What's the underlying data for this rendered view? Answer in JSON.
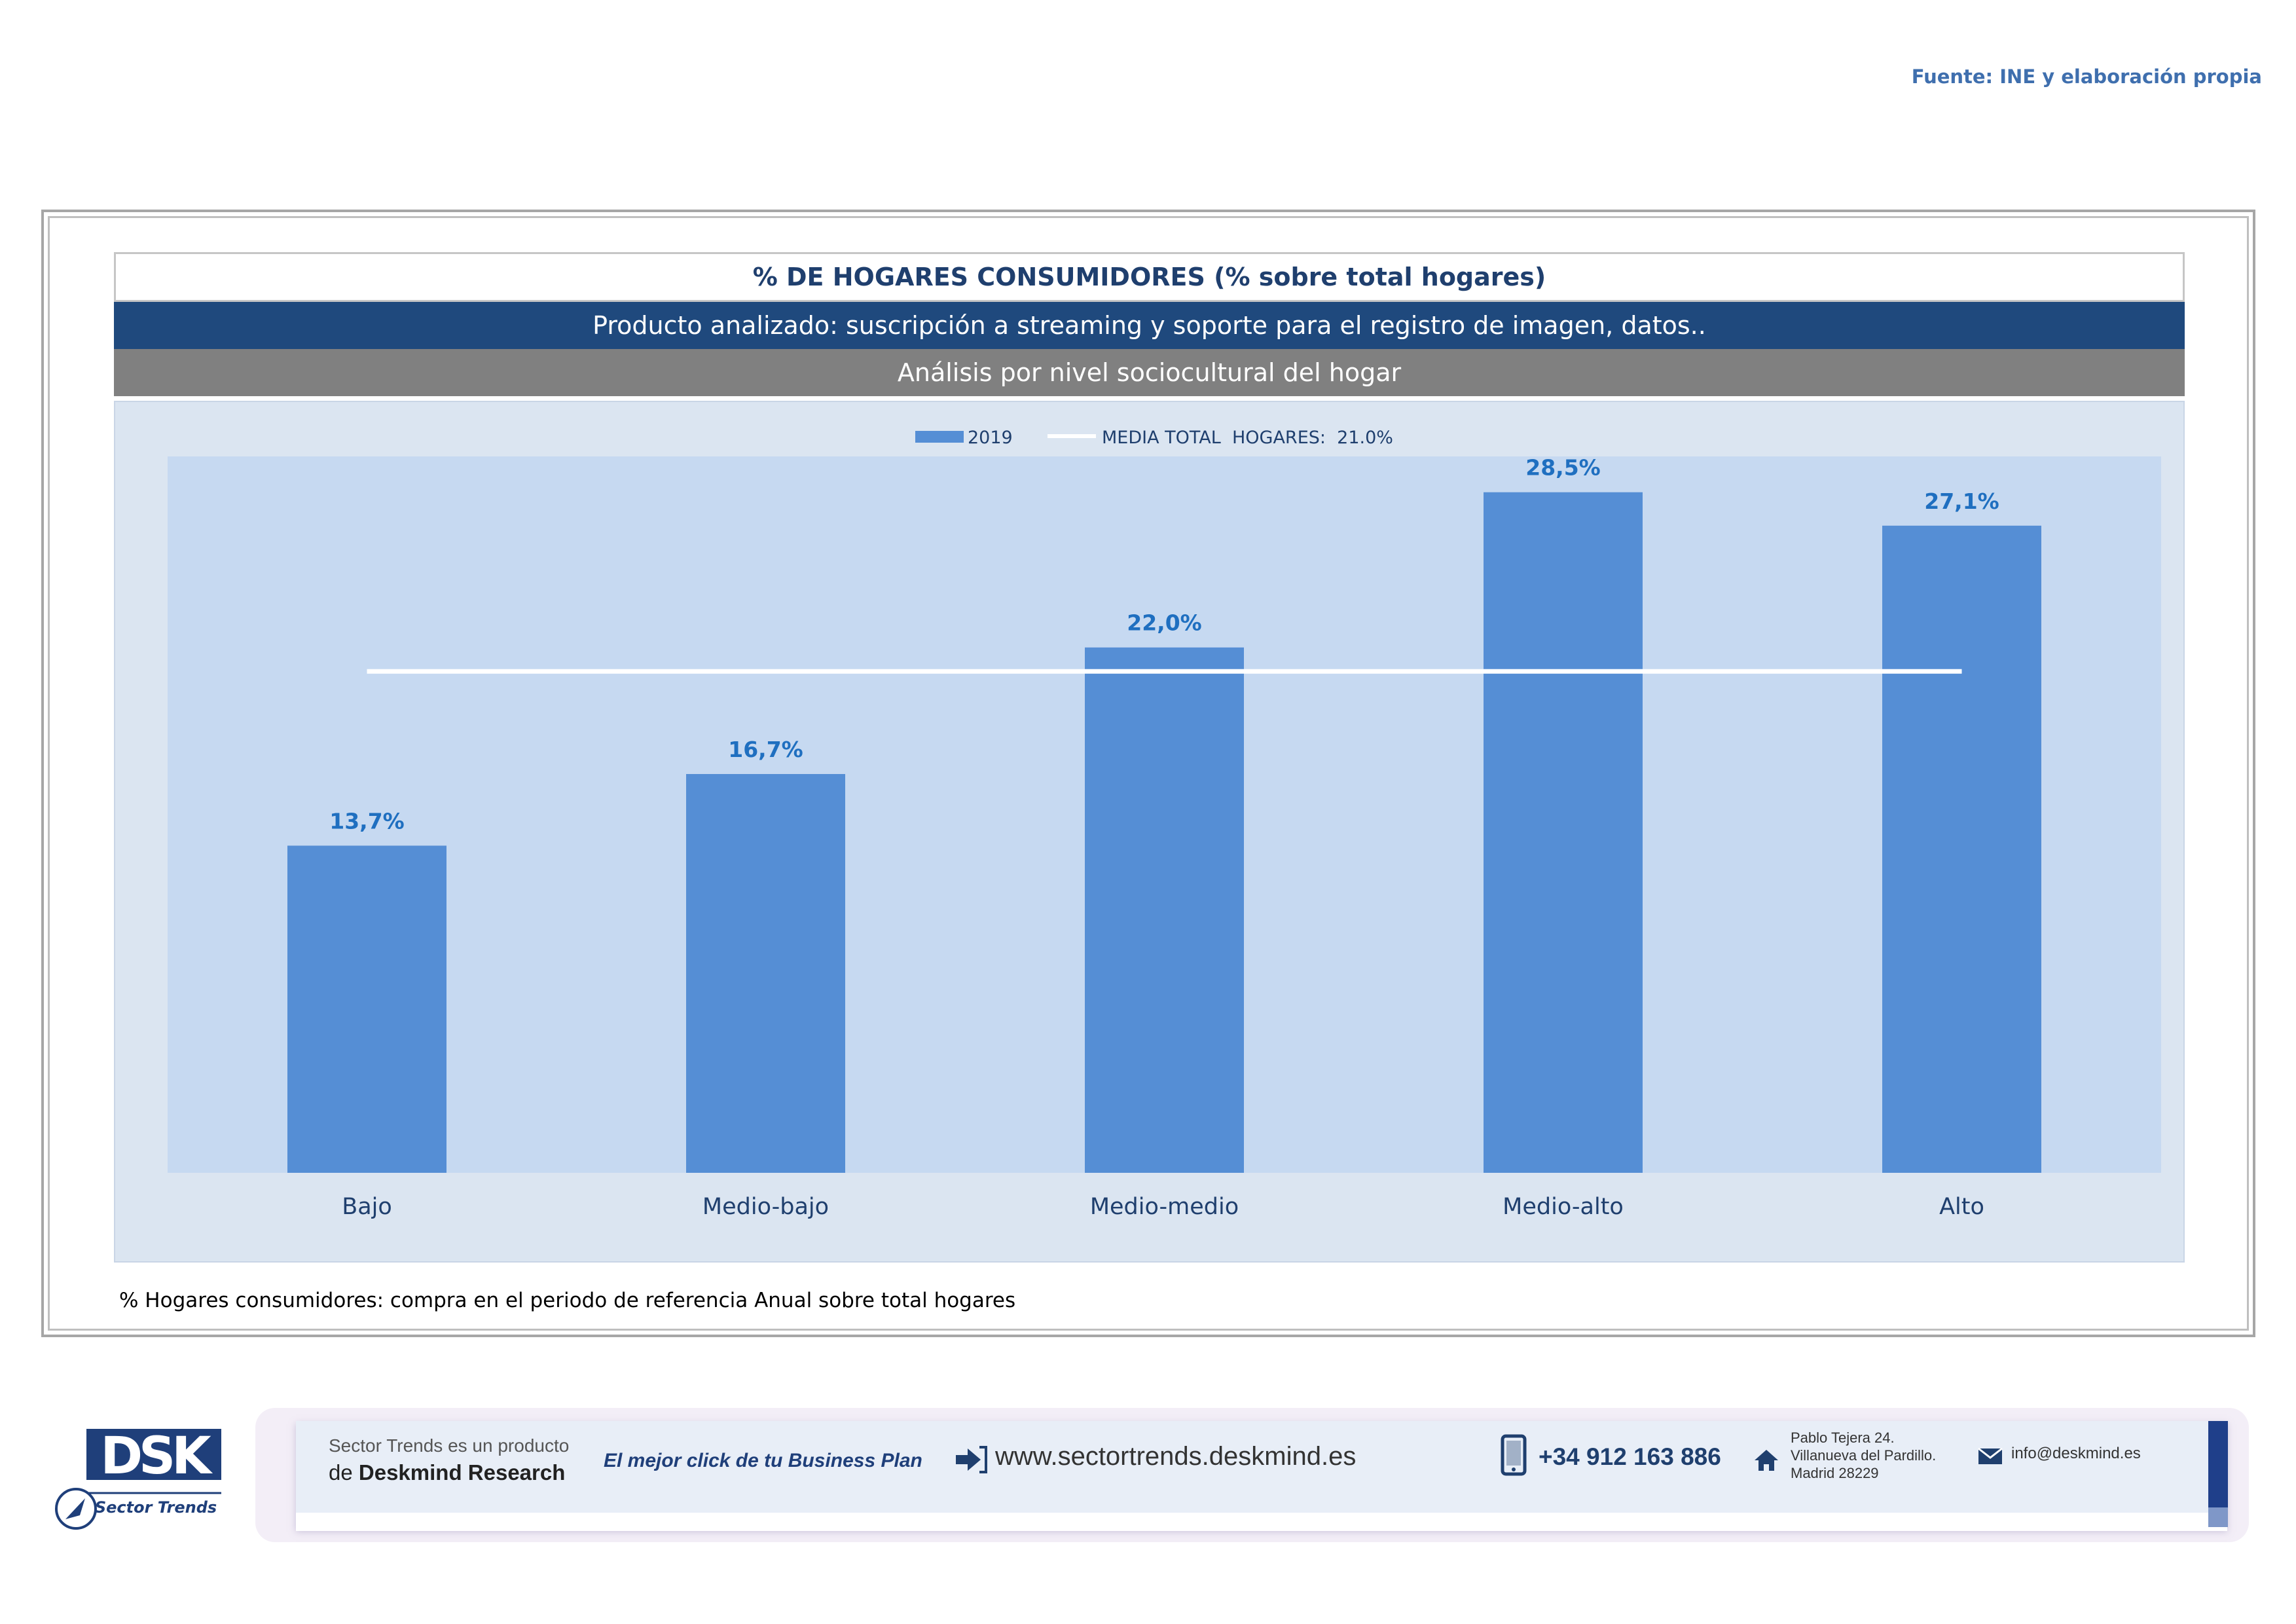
{
  "source": "Fuente: INE y elaboración propia",
  "header": {
    "title": "% DE HOGARES CONSUMIDORES (% sobre total hogares)",
    "product": "Producto analizado: suscripción a streaming y soporte para el registro de imagen, datos..",
    "analysis": "Análisis por nivel sociocultural del hogar"
  },
  "footnote": "% Hogares consumidores: compra en el periodo de referencia Anual sobre total hogares",
  "colors": {
    "bar": "#558ed5",
    "plot_bg": "#c6d9f1",
    "chart_bg": "#dbe5f1",
    "data_label": "#1f6fc0",
    "average_line": "#ffffff",
    "header_dark": "#1f497d",
    "header_gray": "#808080"
  },
  "chart_data": {
    "type": "bar",
    "title": "",
    "xlabel": "",
    "ylabel": "",
    "categories": [
      "Bajo",
      "Medio-bajo",
      "Medio-medio",
      "Medio-alto",
      "Alto"
    ],
    "series": [
      {
        "name": "2019",
        "values": [
          13.7,
          16.7,
          22.0,
          28.5,
          27.1
        ]
      }
    ],
    "data_labels": [
      "13,7%",
      "16,7%",
      "22,0%",
      "28,5%",
      "27,1%"
    ],
    "reference_line": {
      "name": "MEDIA TOTAL  HOGARES:  21.0%",
      "value": 21.0
    },
    "ylim": [
      0,
      30
    ],
    "grid": false,
    "legend_position": "top-center"
  },
  "footer": {
    "logo_text": "DSK",
    "logo_subtitle": "Sector Trends",
    "product_line": "Sector Trends es un producto",
    "research_prefix": "de",
    "research_name": "Deskmind Research",
    "slogan": "El mejor click de tu Business Plan",
    "website": "www.sectortrends.deskmind.es",
    "phone": "+34 912 163 886",
    "address_lines": [
      "Pablo Tejera 24.",
      "Villanueva del Pardillo.",
      "Madrid 28229"
    ],
    "email": "info@deskmind.es",
    "icons": [
      "arrow-link-icon",
      "phone-icon",
      "home-icon",
      "mail-icon"
    ]
  }
}
